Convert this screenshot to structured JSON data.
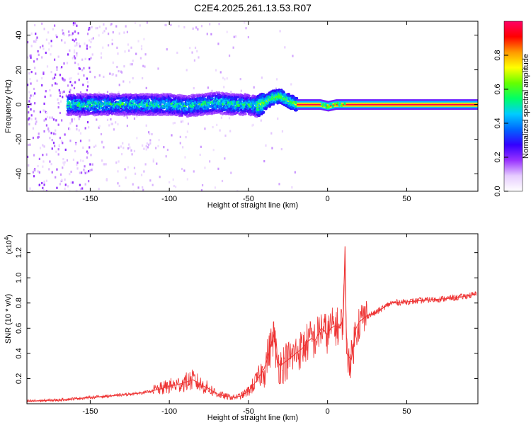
{
  "title": "C2E4.2025.261.13.53.R07",
  "chart_data": [
    {
      "type": "heatmap",
      "xlabel": "Height of straight line (km)",
      "ylabel": "Frequency (Hz)",
      "xlim": [
        -190,
        95
      ],
      "ylim": [
        -50,
        48
      ],
      "xticks": [
        -150,
        -100,
        -50,
        0,
        50
      ],
      "yticks": [
        -40,
        -20,
        0,
        20,
        40
      ],
      "colorbar": {
        "label": "Normalized spectral amplitude",
        "range": [
          0,
          1
        ],
        "ticks": [
          0.0,
          0.2,
          0.4,
          0.6,
          0.8
        ],
        "tick_labels": [
          "0.0",
          "0.2",
          "0.4",
          "0.6",
          "0.8"
        ],
        "colormap": [
          "#ffffff",
          "#e6ccff",
          "#9933ff",
          "#3300ff",
          "#0066ff",
          "#00ccff",
          "#00ff66",
          "#66ff00",
          "#ffff00",
          "#ff9900",
          "#ff0000",
          "#ff0066"
        ]
      },
      "ridge": {
        "x": [
          -160,
          -140,
          -120,
          -100,
          -90,
          -80,
          -70,
          -60,
          -50,
          -45,
          -40,
          -35,
          -30,
          -25,
          -20,
          -15,
          -10,
          -5,
          0,
          5,
          10,
          20,
          40,
          60,
          80,
          94
        ],
        "y": [
          0,
          0,
          0,
          0,
          -1,
          0,
          1,
          0,
          0,
          -1,
          1,
          4,
          5,
          2,
          0,
          0,
          0,
          0,
          -1,
          0,
          0,
          0,
          0,
          0,
          0,
          0
        ]
      }
    },
    {
      "type": "line",
      "xlabel": "Height of straight line (km)",
      "ylabel": "SNR (10 * v/v)",
      "y_multiplier": "(x10",
      "y_multiplier_exp": "4",
      "y_multiplier_close": ")",
      "xlim": [
        -190,
        95
      ],
      "ylim": [
        0,
        1.35
      ],
      "xticks": [
        -150,
        -100,
        -50,
        0,
        50
      ],
      "yticks": [
        0.2,
        0.4,
        0.6,
        0.8,
        1.0,
        1.2
      ],
      "ytick_labels": [
        "0.2",
        "0.4",
        "0.6",
        "0.8",
        "1.0",
        "1.2"
      ],
      "series": [
        {
          "color": "#ee3333",
          "x": [
            -190,
            -170,
            -150,
            -130,
            -115,
            -105,
            -100,
            -95,
            -90,
            -85,
            -80,
            -75,
            -70,
            -65,
            -60,
            -55,
            -50,
            -45,
            -40,
            -36,
            -34,
            -32,
            -30,
            -25,
            -20,
            -15,
            -12,
            -10,
            -8,
            -6,
            -4,
            -2,
            0,
            2,
            5,
            8,
            10,
            11,
            12,
            15,
            18,
            20,
            25,
            30,
            35,
            40,
            50,
            60,
            70,
            80,
            90,
            94
          ],
          "y": [
            0.02,
            0.03,
            0.05,
            0.07,
            0.09,
            0.12,
            0.14,
            0.15,
            0.17,
            0.19,
            0.15,
            0.12,
            0.08,
            0.06,
            0.05,
            0.06,
            0.1,
            0.18,
            0.28,
            0.45,
            0.55,
            0.35,
            0.3,
            0.35,
            0.4,
            0.45,
            0.5,
            0.52,
            0.5,
            0.55,
            0.6,
            0.58,
            0.55,
            0.6,
            0.62,
            0.6,
            0.7,
            1.25,
            0.4,
            0.35,
            0.6,
            0.65,
            0.7,
            0.72,
            0.76,
            0.8,
            0.81,
            0.82,
            0.83,
            0.84,
            0.86,
            0.87
          ]
        }
      ]
    }
  ]
}
